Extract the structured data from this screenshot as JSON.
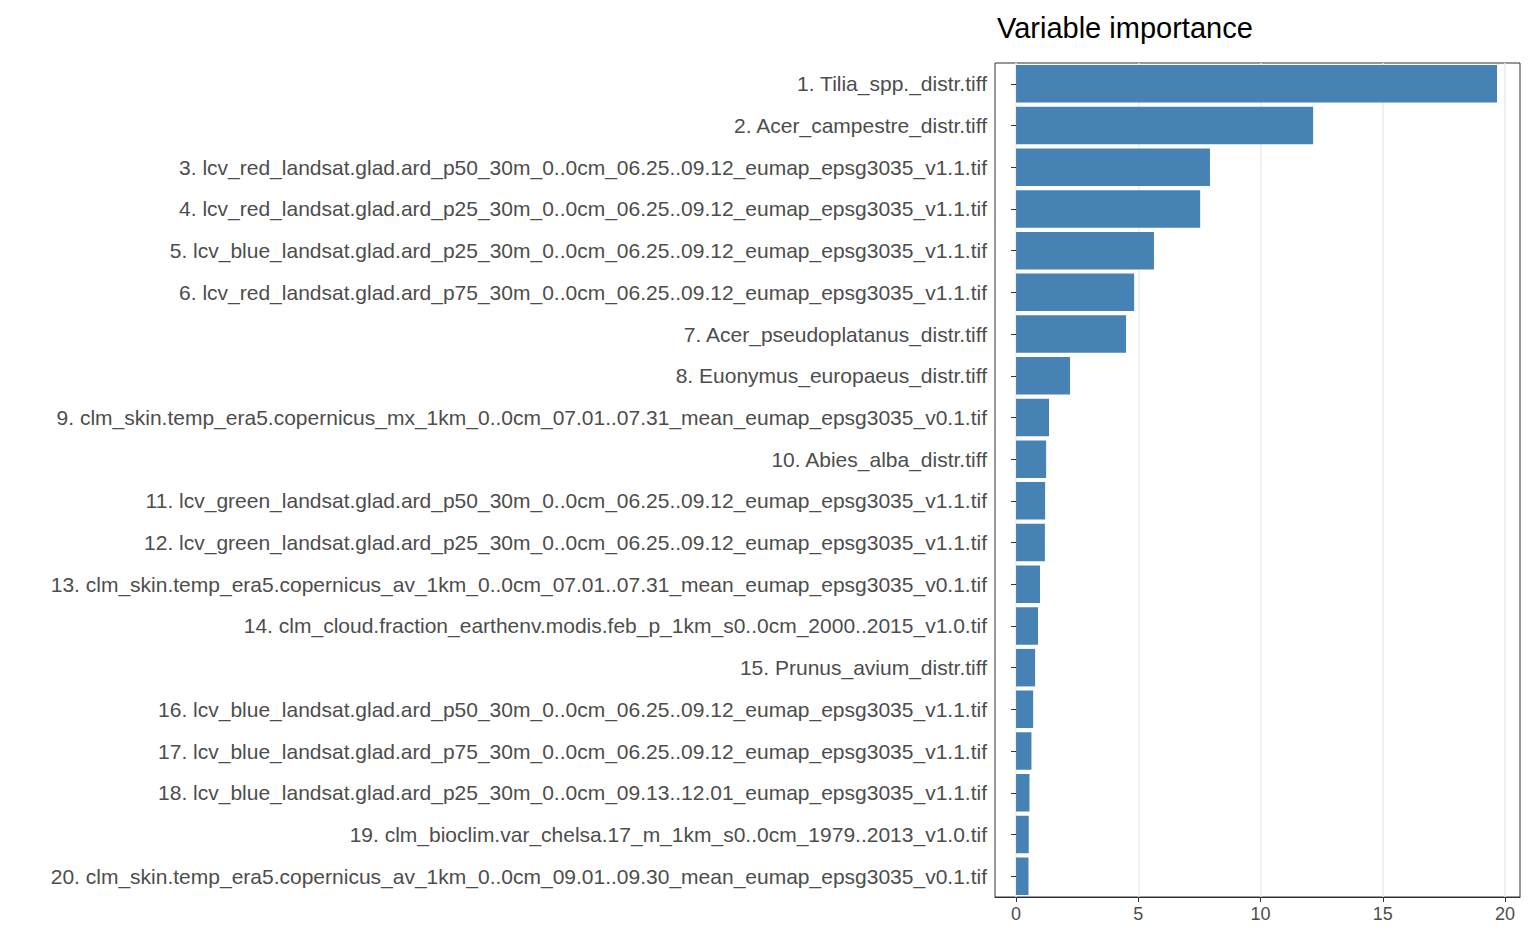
{
  "chart_data": {
    "type": "bar",
    "orientation": "horizontal",
    "title": "Variable importance",
    "categories": [
      "1. Tilia_spp._distr.tiff",
      "2. Acer_campestre_distr.tiff",
      "3. lcv_red_landsat.glad.ard_p50_30m_0..0cm_06.25..09.12_eumap_epsg3035_v1.1.tif",
      "4. lcv_red_landsat.glad.ard_p25_30m_0..0cm_06.25..09.12_eumap_epsg3035_v1.1.tif",
      "5. lcv_blue_landsat.glad.ard_p25_30m_0..0cm_06.25..09.12_eumap_epsg3035_v1.1.tif",
      "6. lcv_red_landsat.glad.ard_p75_30m_0..0cm_06.25..09.12_eumap_epsg3035_v1.1.tif",
      "7. Acer_pseudoplatanus_distr.tiff",
      "8. Euonymus_europaeus_distr.tiff",
      "9. clm_skin.temp_era5.copernicus_mx_1km_0..0cm_07.01..07.31_mean_eumap_epsg3035_v0.1.tif",
      "10. Abies_alba_distr.tiff",
      "11. lcv_green_landsat.glad.ard_p50_30m_0..0cm_06.25..09.12_eumap_epsg3035_v1.1.tif",
      "12. lcv_green_landsat.glad.ard_p25_30m_0..0cm_06.25..09.12_eumap_epsg3035_v1.1.tif",
      "13. clm_skin.temp_era5.copernicus_av_1km_0..0cm_07.01..07.31_mean_eumap_epsg3035_v0.1.tif",
      "14. clm_cloud.fraction_earthenv.modis.feb_p_1km_s0..0cm_2000..2015_v1.0.tif",
      "15. Prunus_avium_distr.tiff",
      "16. lcv_blue_landsat.glad.ard_p50_30m_0..0cm_06.25..09.12_eumap_epsg3035_v1.1.tif",
      "17. lcv_blue_landsat.glad.ard_p75_30m_0..0cm_06.25..09.12_eumap_epsg3035_v1.1.tif",
      "18. lcv_blue_landsat.glad.ard_p25_30m_0..0cm_09.13..12.01_eumap_epsg3035_v1.1.tif",
      "19. clm_bioclim.var_chelsa.17_m_1km_s0..0cm_1979..2013_v1.0.tif",
      "20. clm_skin.temp_era5.copernicus_av_1km_0..0cm_09.01..09.30_mean_eumap_epsg3035_v0.1.tif"
    ],
    "values": [
      19.67,
      12.15,
      7.93,
      7.53,
      5.64,
      4.83,
      4.5,
      2.21,
      1.35,
      1.23,
      1.19,
      1.18,
      0.98,
      0.9,
      0.78,
      0.7,
      0.63,
      0.55,
      0.52,
      0.51
    ],
    "color": "#4682b4",
    "xlim": [
      -0.86,
      20.61
    ],
    "xticks": [
      0,
      5,
      10,
      15,
      20
    ],
    "grid": true
  }
}
